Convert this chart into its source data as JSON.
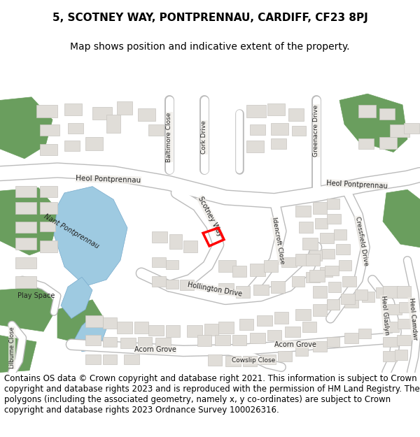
{
  "title_line1": "5, SCOTNEY WAY, PONTPRENNAU, CARDIFF, CF23 8PJ",
  "title_line2": "Map shows position and indicative extent of the property.",
  "footer_text": "Contains OS data © Crown copyright and database right 2021. This information is subject to Crown copyright and database rights 2023 and is reproduced with the permission of HM Land Registry. The polygons (including the associated geometry, namely x, y co-ordinates) are subject to Crown copyright and database rights 2023 Ordnance Survey 100026316.",
  "title_fontsize": 11,
  "subtitle_fontsize": 10,
  "footer_fontsize": 8.5,
  "background_color": "#ffffff",
  "map_bg": "#f0ede8",
  "building_color": "#e0ddd8",
  "building_stroke": "#c8c5c0",
  "green_color": "#6a9e5e",
  "water_color": "#9ecae1",
  "red_polygon_color": "#ff0000",
  "fig_width": 6.0,
  "fig_height": 6.25
}
